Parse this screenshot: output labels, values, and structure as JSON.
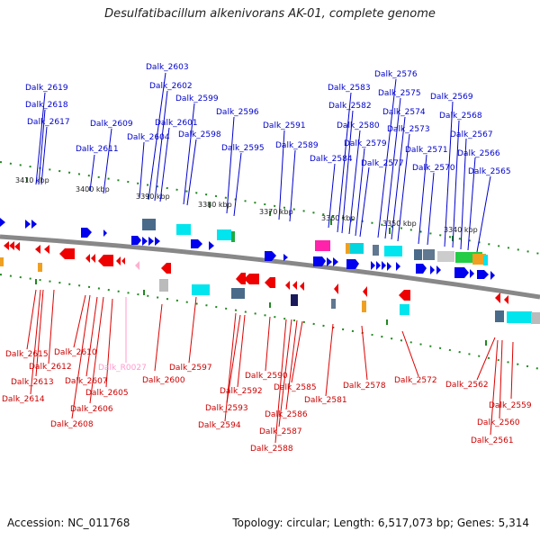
{
  "title": "Desulfatibacillum alkenivorans AK-01, complete genome",
  "footer": {
    "accession": "Accession: NC_011768",
    "topology": "Topology: circular; Length: 6,517,073 bp; Genes: 5,314"
  },
  "colors": {
    "forward": "#0000ee",
    "reverse": "#ee0000",
    "rna": "#ff99cc",
    "backbone": "#888888",
    "tick": "#228822"
  },
  "scale_labels": [
    "3410 kbp",
    "3400 kbp",
    "3390 kbp",
    "3380 kbp",
    "3370 kbp",
    "3360 kbp",
    "3350 kbp",
    "3340 kbp"
  ],
  "forward_genes": [
    "Dalk_2619",
    "Dalk_2618",
    "Dalk_2617",
    "Dalk_2611",
    "Dalk_2609",
    "Dalk_2604",
    "Dalk_2603",
    "Dalk_2602",
    "Dalk_2601",
    "Dalk_2599",
    "Dalk_2598",
    "Dalk_2596",
    "Dalk_2595",
    "Dalk_2591",
    "Dalk_2589",
    "Dalk_2584",
    "Dalk_2583",
    "Dalk_2582",
    "Dalk_2580",
    "Dalk_2579",
    "Dalk_2577",
    "Dalk_2576",
    "Dalk_2575",
    "Dalk_2574",
    "Dalk_2573",
    "Dalk_2571",
    "Dalk_2570",
    "Dalk_2569",
    "Dalk_2568",
    "Dalk_2567",
    "Dalk_2566",
    "Dalk_2565"
  ],
  "reverse_genes": [
    "Dalk_2615",
    "Dalk_2614",
    "Dalk_2613",
    "Dalk_2612",
    "Dalk_2610",
    "Dalk_2608",
    "Dalk_2607",
    "Dalk_2606",
    "Dalk_2605",
    "Dalk_R0027",
    "Dalk_2600",
    "Dalk_2597",
    "Dalk_2594",
    "Dalk_2593",
    "Dalk_2592",
    "Dalk_2590",
    "Dalk_2588",
    "Dalk_2587",
    "Dalk_2586",
    "Dalk_2585",
    "Dalk_2581",
    "Dalk_2578",
    "Dalk_2572",
    "Dalk_2562",
    "Dalk_2561",
    "Dalk_2560",
    "Dalk_2559"
  ]
}
